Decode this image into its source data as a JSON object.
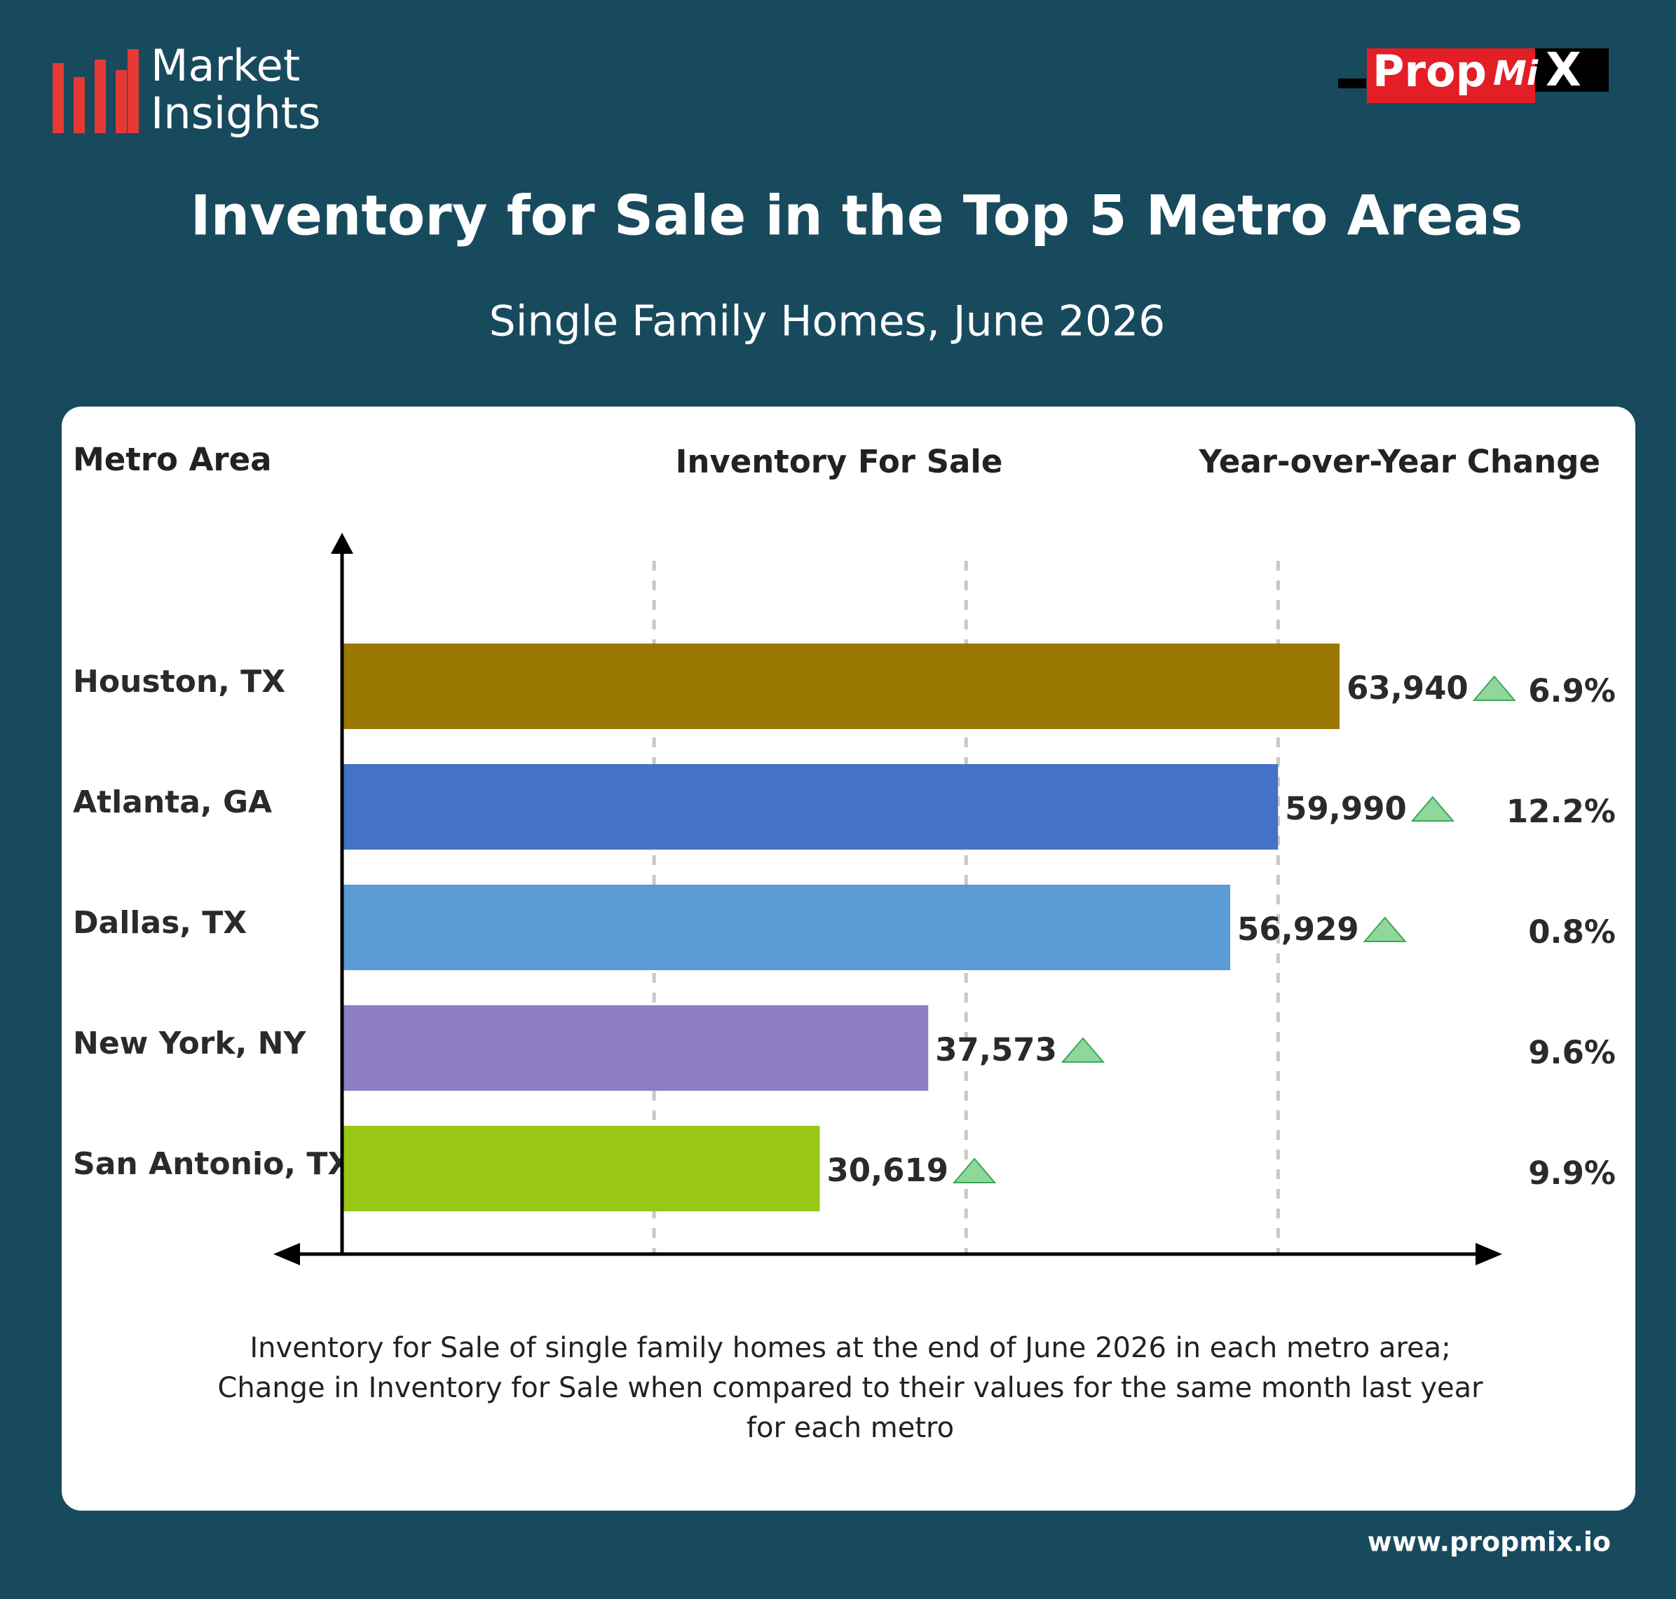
{
  "header": {
    "brand": "Market Insights",
    "logo_prefix": "Prop",
    "logo_mid": "Mi",
    "logo_suffix": "X"
  },
  "chart_data": {
    "type": "bar",
    "orientation": "horizontal",
    "title": "Inventory for Sale in the Top 5 Metro Areas",
    "subtitle": "Single Family Homes, June 2026",
    "category_header": "Metro Area",
    "value_header": "Inventory For Sale",
    "change_header": "Year-over-Year Change",
    "categories": [
      "Houston, TX",
      "Atlanta, GA",
      "Dallas, TX",
      "New York, NY",
      "San Antonio, TX"
    ],
    "values": [
      63940,
      59990,
      56929,
      37573,
      30619
    ],
    "value_labels": [
      "63,940",
      "59,990",
      "56,929",
      "37,573",
      "30,619"
    ],
    "colors": [
      "#997700",
      "#4472c4",
      "#5b9bd5",
      "#8e7fc3",
      "#99c715"
    ],
    "change": {
      "values": [
        6.9,
        12.2,
        0.8,
        9.6,
        9.9
      ],
      "value_labels": [
        "6.9%",
        "12.2%",
        "0.8%",
        "9.6%",
        "9.9%"
      ]
    },
    "xlim": [
      0,
      74000
    ],
    "xgrid": [
      20000,
      40000,
      60000
    ],
    "footnote": [
      "Inventory for Sale of single family homes at the end of June 2026 in each metro area;",
      "Change in Inventory for Sale when compared to their values for the same month last year",
      "for each metro"
    ]
  },
  "footer": {
    "url": "www.propmix.io"
  }
}
